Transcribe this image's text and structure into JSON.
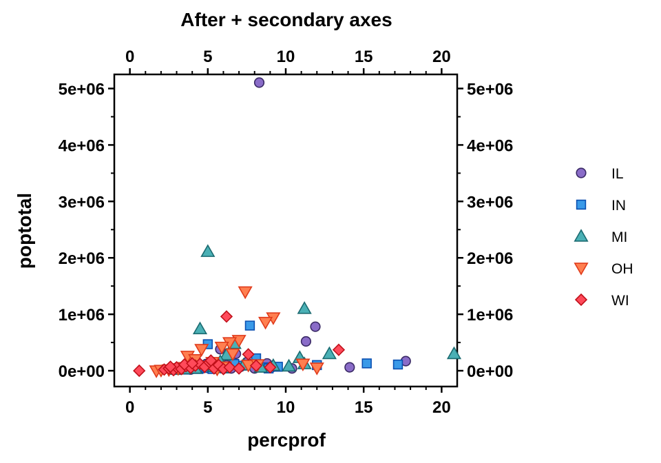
{
  "chart_data": {
    "type": "scatter",
    "title": "After + secondary axes",
    "xlabel": "percprof",
    "ylabel": "poptotal",
    "xlim": [
      -1,
      21
    ],
    "ylim": [
      -280000,
      5250000
    ],
    "x_ticks": [
      0,
      5,
      10,
      15,
      20
    ],
    "x_tick_labels": [
      "0",
      "5",
      "10",
      "15",
      "20"
    ],
    "y_ticks": [
      0,
      1000000,
      2000000,
      3000000,
      4000000,
      5000000
    ],
    "y_tick_labels": [
      "0e+00",
      "1e+06",
      "2e+06",
      "3e+06",
      "4e+06",
      "5e+06"
    ],
    "secondary_x_axis": true,
    "secondary_y_axis": true,
    "grid": false,
    "legend_position": "right",
    "series": [
      {
        "name": "IL",
        "marker": "circle",
        "fill": "#8a6cc8",
        "stroke": "#3a2a66",
        "points": [
          [
            8.3,
            5105000
          ],
          [
            11.9,
            780000
          ],
          [
            11.3,
            520000
          ],
          [
            17.7,
            170000
          ],
          [
            14.1,
            60000
          ],
          [
            10.4,
            40000
          ],
          [
            5.8,
            380000
          ],
          [
            6.8,
            300000
          ],
          [
            8.8,
            130000
          ],
          [
            7.5,
            150000
          ],
          [
            4.3,
            60000
          ],
          [
            3.5,
            30000
          ],
          [
            5.0,
            50000
          ],
          [
            6.2,
            100000
          ],
          [
            7.9,
            80000
          ],
          [
            9.1,
            60000
          ],
          [
            3.9,
            20000
          ],
          [
            4.6,
            40000
          ],
          [
            5.5,
            90000
          ],
          [
            2.8,
            15000
          ],
          [
            6.5,
            40000
          ],
          [
            7.1,
            70000
          ],
          [
            3.2,
            25000
          ],
          [
            4.9,
            120000
          ],
          [
            8.0,
            40000
          ]
        ]
      },
      {
        "name": "IN",
        "marker": "square",
        "fill": "#3a9ae8",
        "stroke": "#0a4fb0",
        "points": [
          [
            5.0,
            470000
          ],
          [
            7.7,
            800000
          ],
          [
            8.1,
            220000
          ],
          [
            15.2,
            130000
          ],
          [
            17.2,
            110000
          ],
          [
            12.0,
            100000
          ],
          [
            8.6,
            60000
          ],
          [
            6.1,
            40000
          ],
          [
            4.4,
            30000
          ],
          [
            5.6,
            110000
          ],
          [
            7.2,
            90000
          ],
          [
            3.6,
            20000
          ],
          [
            9.5,
            70000
          ],
          [
            6.7,
            120000
          ],
          [
            4.9,
            50000
          ],
          [
            5.3,
            30000
          ],
          [
            8.9,
            40000
          ]
        ]
      },
      {
        "name": "MI",
        "marker": "triangle",
        "fill": "#4ab0b5",
        "stroke": "#1a6a70",
        "points": [
          [
            5.0,
            2110000
          ],
          [
            4.5,
            740000
          ],
          [
            11.2,
            1100000
          ],
          [
            20.8,
            300000
          ],
          [
            12.8,
            300000
          ],
          [
            10.9,
            230000
          ],
          [
            11.2,
            120000
          ],
          [
            10.2,
            80000
          ],
          [
            6.7,
            480000
          ],
          [
            6.2,
            280000
          ],
          [
            5.8,
            160000
          ],
          [
            7.3,
            100000
          ],
          [
            8.4,
            60000
          ],
          [
            4.2,
            40000
          ],
          [
            3.5,
            30000
          ],
          [
            5.4,
            70000
          ],
          [
            6.0,
            50000
          ],
          [
            9.2,
            90000
          ],
          [
            2.9,
            20000
          ]
        ]
      },
      {
        "name": "OH",
        "marker": "triangle-down",
        "fill": "#ff7f50",
        "stroke": "#e03a1a",
        "points": [
          [
            7.4,
            1400000
          ],
          [
            9.2,
            940000
          ],
          [
            8.7,
            860000
          ],
          [
            7.0,
            540000
          ],
          [
            6.4,
            500000
          ],
          [
            5.9,
            420000
          ],
          [
            4.6,
            380000
          ],
          [
            6.6,
            300000
          ],
          [
            3.7,
            260000
          ],
          [
            4.2,
            200000
          ],
          [
            5.3,
            150000
          ],
          [
            7.6,
            100000
          ],
          [
            8.2,
            110000
          ],
          [
            11.1,
            120000
          ],
          [
            12.0,
            50000
          ],
          [
            1.7,
            0
          ],
          [
            2.5,
            20000
          ],
          [
            3.1,
            40000
          ],
          [
            4.8,
            80000
          ],
          [
            6.1,
            70000
          ],
          [
            2.0,
            10000
          ],
          [
            3.4,
            60000
          ],
          [
            5.6,
            30000
          ]
        ]
      },
      {
        "name": "WI",
        "marker": "diamond",
        "fill": "#ff4a5a",
        "stroke": "#c0101a",
        "points": [
          [
            6.2,
            960000
          ],
          [
            13.4,
            370000
          ],
          [
            7.6,
            290000
          ],
          [
            0.6,
            0
          ],
          [
            2.2,
            20000
          ],
          [
            2.5,
            40000
          ],
          [
            2.8,
            10000
          ],
          [
            3.0,
            60000
          ],
          [
            3.3,
            30000
          ],
          [
            3.6,
            80000
          ],
          [
            3.9,
            50000
          ],
          [
            4.2,
            90000
          ],
          [
            4.5,
            120000
          ],
          [
            4.8,
            70000
          ],
          [
            5.1,
            150000
          ],
          [
            5.4,
            40000
          ],
          [
            5.7,
            100000
          ],
          [
            6.0,
            30000
          ],
          [
            6.4,
            60000
          ],
          [
            7.0,
            40000
          ],
          [
            8.1,
            90000
          ],
          [
            9.0,
            60000
          ],
          [
            2.6,
            70000
          ],
          [
            3.5,
            110000
          ],
          [
            4.0,
            130000
          ],
          [
            5.2,
            180000
          ]
        ]
      }
    ]
  }
}
